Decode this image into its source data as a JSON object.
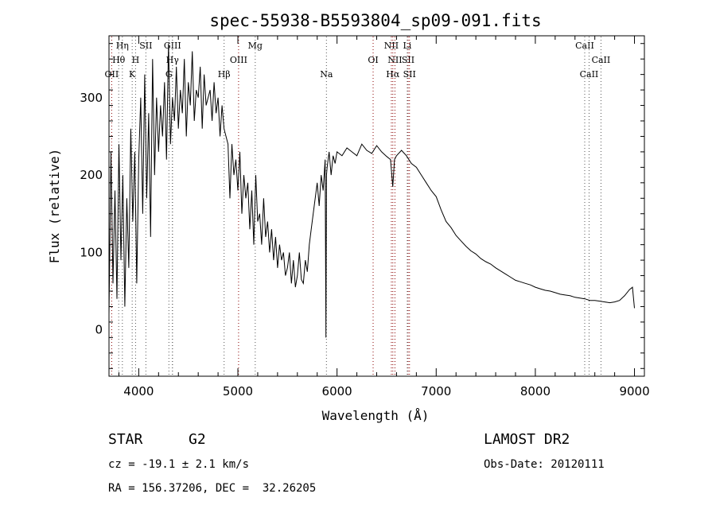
{
  "chart_data": {
    "type": "line",
    "title": "spec-55938-B5593804_sp09-091.fits",
    "xlabel": "Wavelength (Å)",
    "ylabel": "Flux (relative)",
    "xlim": [
      3700,
      9100
    ],
    "ylim": [
      -60,
      380
    ],
    "x_ticks": [
      4000,
      5000,
      6000,
      7000,
      8000,
      9000
    ],
    "y_ticks": [
      0,
      100,
      200,
      300
    ],
    "grid": false,
    "line_color": "#000000",
    "marker_color_emission": "#8b0000",
    "marker_color_absorption": "#555555",
    "series": [
      {
        "x": [
          3700,
          3720,
          3740,
          3760,
          3780,
          3800,
          3820,
          3840,
          3860,
          3880,
          3900,
          3920,
          3940,
          3960,
          3980,
          4000,
          4020,
          4040,
          4060,
          4080,
          4100,
          4120,
          4140,
          4160,
          4180,
          4200,
          4220,
          4240,
          4260,
          4280,
          4300,
          4320,
          4340,
          4360,
          4380,
          4400,
          4420,
          4440,
          4460,
          4480,
          4500,
          4520,
          4540,
          4560,
          4580,
          4600,
          4620,
          4640,
          4660,
          4680,
          4700,
          4720,
          4740,
          4760,
          4780,
          4800,
          4820,
          4840,
          4860,
          4880,
          4900,
          4920,
          4940,
          4960,
          4980,
          5000,
          5020,
          5040,
          5060,
          5080,
          5100,
          5120,
          5140,
          5160,
          5180,
          5200,
          5220,
          5240,
          5260,
          5280,
          5300,
          5320,
          5340,
          5360,
          5380,
          5400,
          5420,
          5440,
          5460,
          5480,
          5500,
          5520,
          5540,
          5560,
          5580,
          5600,
          5620,
          5640,
          5660,
          5680,
          5700,
          5720,
          5740,
          5760,
          5780,
          5800,
          5820,
          5840,
          5860,
          5880,
          5888,
          5894,
          5900,
          5920,
          5940,
          5960,
          5980,
          6000,
          6050,
          6100,
          6150,
          6200,
          6250,
          6300,
          6350,
          6400,
          6450,
          6500,
          6540,
          6562,
          6580,
          6600,
          6650,
          6700,
          6750,
          6800,
          6850,
          6900,
          6950,
          7000,
          7050,
          7100,
          7150,
          7200,
          7250,
          7300,
          7350,
          7400,
          7450,
          7500,
          7550,
          7600,
          7650,
          7700,
          7750,
          7800,
          7850,
          7900,
          7950,
          8000,
          8050,
          8100,
          8150,
          8200,
          8250,
          8300,
          8350,
          8400,
          8450,
          8500,
          8550,
          8600,
          8650,
          8700,
          8750,
          8800,
          8850,
          8900,
          8950,
          8980,
          9000
        ],
        "y": [
          20,
          230,
          60,
          180,
          40,
          240,
          90,
          200,
          30,
          170,
          80,
          260,
          140,
          230,
          60,
          220,
          300,
          150,
          330,
          170,
          280,
          120,
          350,
          200,
          300,
          230,
          290,
          250,
          320,
          220,
          370,
          240,
          300,
          270,
          340,
          260,
          310,
          280,
          350,
          250,
          320,
          290,
          360,
          270,
          310,
          300,
          340,
          260,
          330,
          290,
          300,
          310,
          270,
          320,
          280,
          300,
          250,
          290,
          260,
          250,
          240,
          170,
          240,
          200,
          220,
          180,
          230,
          150,
          200,
          170,
          190,
          130,
          180,
          110,
          200,
          140,
          150,
          110,
          170,
          120,
          140,
          100,
          130,
          90,
          120,
          80,
          110,
          90,
          100,
          70,
          80,
          100,
          60,
          90,
          55,
          70,
          100,
          65,
          60,
          90,
          75,
          110,
          130,
          150,
          170,
          190,
          160,
          200,
          180,
          220,
          -10,
          200,
          210,
          230,
          200,
          225,
          215,
          230,
          225,
          235,
          230,
          225,
          240,
          232,
          228,
          238,
          230,
          224,
          220,
          185,
          220,
          225,
          232,
          225,
          215,
          210,
          200,
          190,
          180,
          172,
          155,
          140,
          132,
          122,
          115,
          108,
          102,
          98,
          92,
          88,
          85,
          80,
          76,
          72,
          68,
          64,
          62,
          60,
          58,
          55,
          53,
          51,
          50,
          48,
          46,
          45,
          44,
          42,
          41,
          40,
          38,
          38,
          37,
          36,
          35,
          36,
          38,
          44,
          52,
          55,
          28
        ]
      }
    ],
    "line_markers": [
      {
        "label": "Hη",
        "x": 3835,
        "row": 0,
        "kind": "absorption"
      },
      {
        "label": "Hθ",
        "x": 3798,
        "row": 1,
        "kind": "absorption"
      },
      {
        "label": "OII",
        "x": 3727,
        "row": 2,
        "kind": "emission"
      },
      {
        "label": "H",
        "x": 3968,
        "row": 1,
        "kind": "absorption"
      },
      {
        "label": "K",
        "x": 3934,
        "row": 2,
        "kind": "absorption"
      },
      {
        "label": "SII",
        "x": 4072,
        "row": 0,
        "kind": "absorption"
      },
      {
        "label": "GIII",
        "x": 4340,
        "row": 0,
        "kind": "absorption"
      },
      {
        "label": "Hγ",
        "x": 4340,
        "row": 1,
        "kind": "absorption"
      },
      {
        "label": "G",
        "x": 4304,
        "row": 2,
        "kind": "absorption"
      },
      {
        "label": "Mg",
        "x": 5175,
        "row": 0,
        "kind": "absorption"
      },
      {
        "label": "OIII",
        "x": 5007,
        "row": 1,
        "kind": "emission"
      },
      {
        "label": "Hβ",
        "x": 4861,
        "row": 2,
        "kind": "absorption"
      },
      {
        "label": "Na",
        "x": 5893,
        "row": 2,
        "kind": "absorption"
      },
      {
        "label": "NII",
        "x": 6548,
        "row": 0,
        "kind": "emission"
      },
      {
        "label": "Li",
        "x": 6708,
        "row": 0,
        "kind": "absorption"
      },
      {
        "label": "OI",
        "x": 6364,
        "row": 1,
        "kind": "emission"
      },
      {
        "label": "NII",
        "x": 6584,
        "row": 1,
        "kind": "emission"
      },
      {
        "label": "SII",
        "x": 6717,
        "row": 1,
        "kind": "emission"
      },
      {
        "label": "Hα",
        "x": 6563,
        "row": 2,
        "kind": "emission"
      },
      {
        "label": "SII",
        "x": 6731,
        "row": 2,
        "kind": "emission"
      },
      {
        "label": "CaII",
        "x": 8498,
        "row": 0,
        "kind": "absorption"
      },
      {
        "label": "CaII",
        "x": 8662,
        "row": 1,
        "kind": "absorption"
      },
      {
        "label": "CaII",
        "x": 8542,
        "row": 2,
        "kind": "absorption"
      }
    ]
  },
  "info": {
    "class": "STAR",
    "subclass": "G2",
    "cz": "cz = -19.1 ± 2.1 km/s",
    "coords": "RA = 156.37206, DEC =  32.26205",
    "survey": "LAMOST DR2",
    "obs_date": "Obs-Date: 20120111"
  }
}
